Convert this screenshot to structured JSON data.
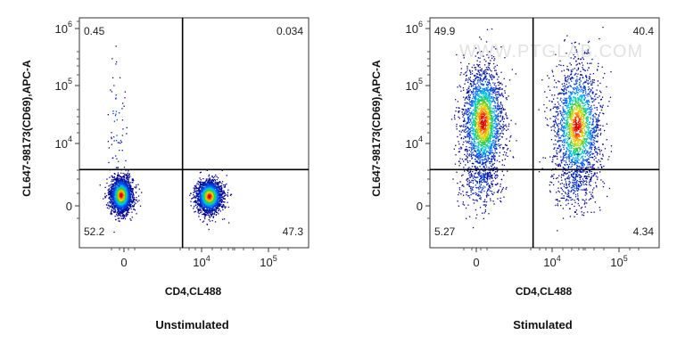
{
  "watermark": "WWW.PTGLAB.COM",
  "chart_data": [
    {
      "type": "scatter",
      "subtype": "flow-cytometry-density",
      "title": "Unstimulated",
      "xlabel": "CD4,CL488",
      "ylabel": "CL647-98173(CD69),APC-A",
      "x_ticks": [
        {
          "base": "0",
          "exp": ""
        },
        {
          "base": "10",
          "exp": "4"
        },
        {
          "base": "10",
          "exp": "5"
        }
      ],
      "y_ticks": [
        {
          "base": "0",
          "exp": ""
        },
        {
          "base": "10",
          "exp": "4"
        },
        {
          "base": "10",
          "exp": "5"
        },
        {
          "base": "10",
          "exp": "6"
        }
      ],
      "quadrant_percentages": {
        "upper_left": "0.45",
        "upper_right": "0.034",
        "lower_left": "52.2",
        "lower_right": "47.3"
      },
      "populations": [
        {
          "name": "CD4-negative CD69-negative cells",
          "cx": 0.18,
          "cy": 0.23,
          "sx": 0.024,
          "sy": 0.038,
          "count": 2300
        },
        {
          "name": "CD4-positive CD69-negative cells",
          "cx": 0.565,
          "cy": 0.225,
          "sx": 0.028,
          "sy": 0.035,
          "count": 2100
        },
        {
          "name": "scattered events",
          "cx": 0.16,
          "cy": 0.55,
          "sx": 0.02,
          "sy": 0.14,
          "count": 60
        }
      ],
      "gate_x": 0.45,
      "gate_y": 0.34
    },
    {
      "type": "scatter",
      "subtype": "flow-cytometry-density",
      "title": "Stimulated",
      "xlabel": "CD4,CL488",
      "ylabel": "CL647-98173(CD69),APC-A",
      "x_ticks": [
        {
          "base": "0",
          "exp": ""
        },
        {
          "base": "10",
          "exp": "4"
        },
        {
          "base": "10",
          "exp": "5"
        }
      ],
      "y_ticks": [
        {
          "base": "0",
          "exp": ""
        },
        {
          "base": "10",
          "exp": "4"
        },
        {
          "base": "10",
          "exp": "5"
        },
        {
          "base": "10",
          "exp": "6"
        }
      ],
      "quadrant_percentages": {
        "upper_left": "49.9",
        "upper_right": "40.4",
        "lower_left": "5.27",
        "lower_right": "4.34"
      },
      "populations": [
        {
          "name": "CD4-negative CD69-positive cells",
          "cx": 0.23,
          "cy": 0.55,
          "sx": 0.045,
          "sy": 0.12,
          "count": 2400
        },
        {
          "name": "CD4-positive CD69-positive cells",
          "cx": 0.64,
          "cy": 0.53,
          "sx": 0.05,
          "sy": 0.13,
          "count": 2100
        },
        {
          "name": "CD4-negative CD69-negative cells",
          "cx": 0.22,
          "cy": 0.28,
          "sx": 0.045,
          "sy": 0.06,
          "count": 260
        },
        {
          "name": "CD4-positive CD69-negative cells",
          "cx": 0.63,
          "cy": 0.27,
          "sx": 0.05,
          "sy": 0.06,
          "count": 220
        }
      ],
      "gate_x": 0.45,
      "gate_y": 0.34
    }
  ]
}
